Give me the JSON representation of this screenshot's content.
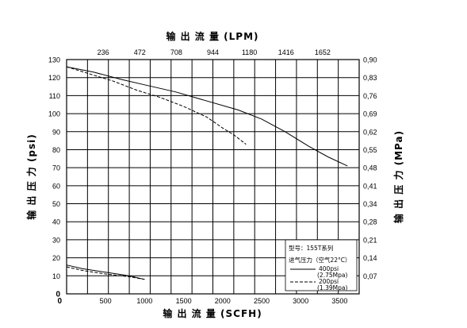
{
  "chart_data": {
    "type": "line",
    "title": "",
    "top_axis": {
      "label": "输 出 流 量 (LPM)",
      "ticks": [
        "236",
        "472",
        "708",
        "944",
        "1180",
        "1416",
        "1652"
      ]
    },
    "bottom_axis": {
      "label": "输 出 流 量 (SCFH)",
      "range": [
        0,
        3750
      ],
      "ticks": [
        "0",
        "500",
        "1000",
        "1500",
        "2000",
        "2500",
        "3000",
        "3500"
      ]
    },
    "left_axis": {
      "label": "输 出 压 力 (psi)",
      "range": [
        0,
        130
      ],
      "ticks": [
        "0",
        "10",
        "20",
        "30",
        "40",
        "50",
        "60",
        "70",
        "80",
        "90",
        "100",
        "110",
        "120",
        "130"
      ]
    },
    "right_axis": {
      "label": "输 出 压 力 (MPa)",
      "ticks": [
        "0,07",
        "0,14",
        "0,21",
        "0,28",
        "0,34",
        "0,41",
        "0,48",
        "0,55",
        "0,62",
        "0,69",
        "0,76",
        "0,83",
        "0,90"
      ]
    },
    "grid": true,
    "legend": {
      "model": "型号：155T系列",
      "heading": "进气压力（空气22°C）",
      "entries": [
        {
          "label": "400psi",
          "sublabel": "(2.75Mpa)",
          "style": "solid"
        },
        {
          "label": "200psi",
          "sublabel": "(1.39Mpa)",
          "style": "dashed"
        }
      ]
    },
    "series": [
      {
        "style": "solid",
        "x": [
          0,
          350,
          700,
          1000,
          1400,
          1800,
          2200,
          2500,
          2800,
          3100,
          3350,
          3600
        ],
        "y": [
          126,
          123,
          119,
          116,
          112,
          107,
          102,
          97,
          90,
          82,
          76,
          71
        ]
      },
      {
        "style": "dashed",
        "x": [
          0,
          300,
          600,
          900,
          1200,
          1500,
          1800,
          2000,
          2150,
          2300
        ],
        "y": [
          126,
          122,
          118,
          113,
          109,
          104,
          98,
          92,
          88,
          83
        ]
      },
      {
        "style": "solid",
        "x": [
          0,
          200,
          500,
          800,
          1000
        ],
        "y": [
          16,
          14,
          12,
          10,
          8
        ]
      },
      {
        "style": "dashed",
        "x": [
          0,
          200,
          500,
          800,
          1000
        ],
        "y": [
          15,
          13,
          11,
          9.5,
          8
        ]
      }
    ]
  }
}
